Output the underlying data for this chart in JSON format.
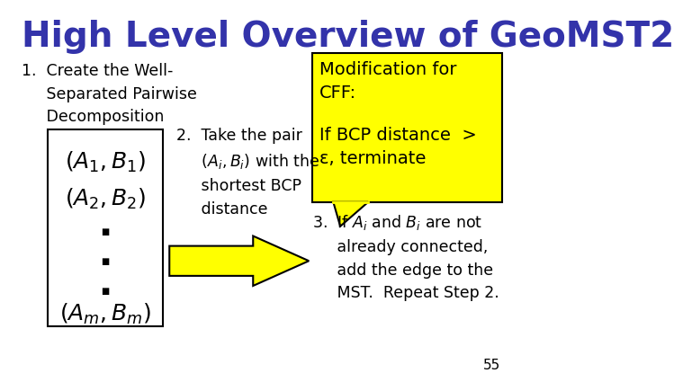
{
  "title": "High Level Overview of GeoMST2",
  "title_color": "#3333AA",
  "title_fontsize": 28,
  "bg_color": "#FFFFFF",
  "yellow": "#FFFF00",
  "black": "#000000",
  "page_num": "55"
}
